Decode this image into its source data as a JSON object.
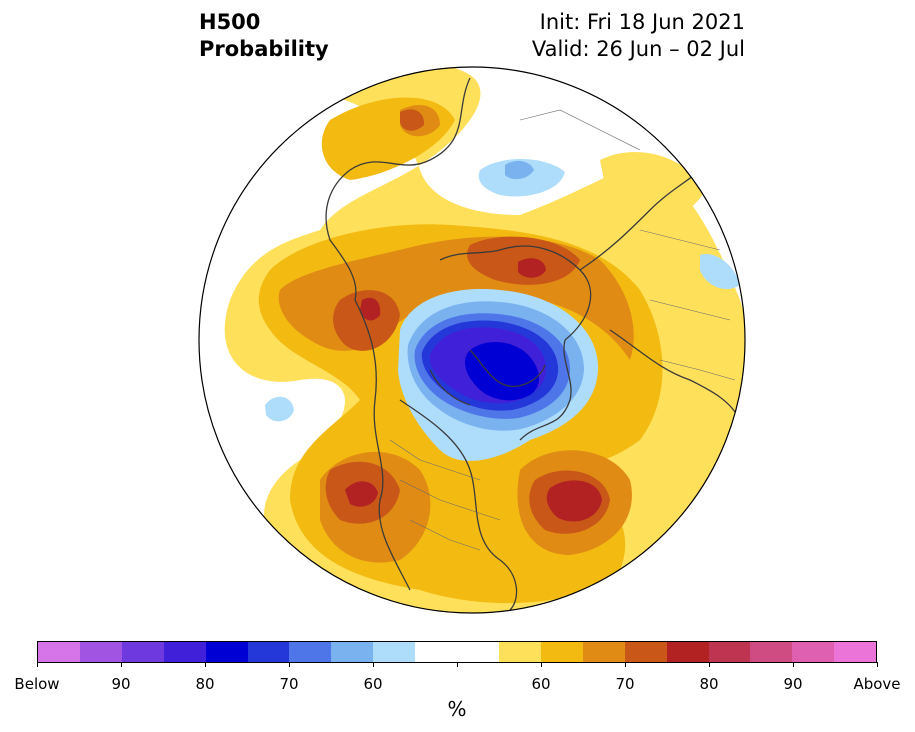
{
  "title": {
    "line1": "H500",
    "line2": "Probability",
    "init": "Init: Fri 18 Jun 2021",
    "valid": "Valid: 26 Jun – 02 Jul"
  },
  "colorbar": {
    "colors": [
      "#d674ea",
      "#a153e1",
      "#6e3adf",
      "#4020d8",
      "#0000d4",
      "#2438d9",
      "#4f76e8",
      "#7ab2f0",
      "#aedcfb",
      "#ffffff",
      "#ffffff",
      "#ffe05a",
      "#f3bb11",
      "#e08c14",
      "#c95818",
      "#b32222",
      "#bf3450",
      "#cf4c82",
      "#df60b0",
      "#ea74d8"
    ],
    "tick_labels": [
      "Below",
      "90",
      "80",
      "70",
      "60",
      "60",
      "70",
      "80",
      "90",
      "Above"
    ],
    "units": "%"
  },
  "legend_colors": {
    "below_strong": "#0000d4",
    "below_weak": "#aedcfb",
    "above_weak": "#ffe05a",
    "above_mid": "#e08c14",
    "above_strong": "#b32222"
  }
}
